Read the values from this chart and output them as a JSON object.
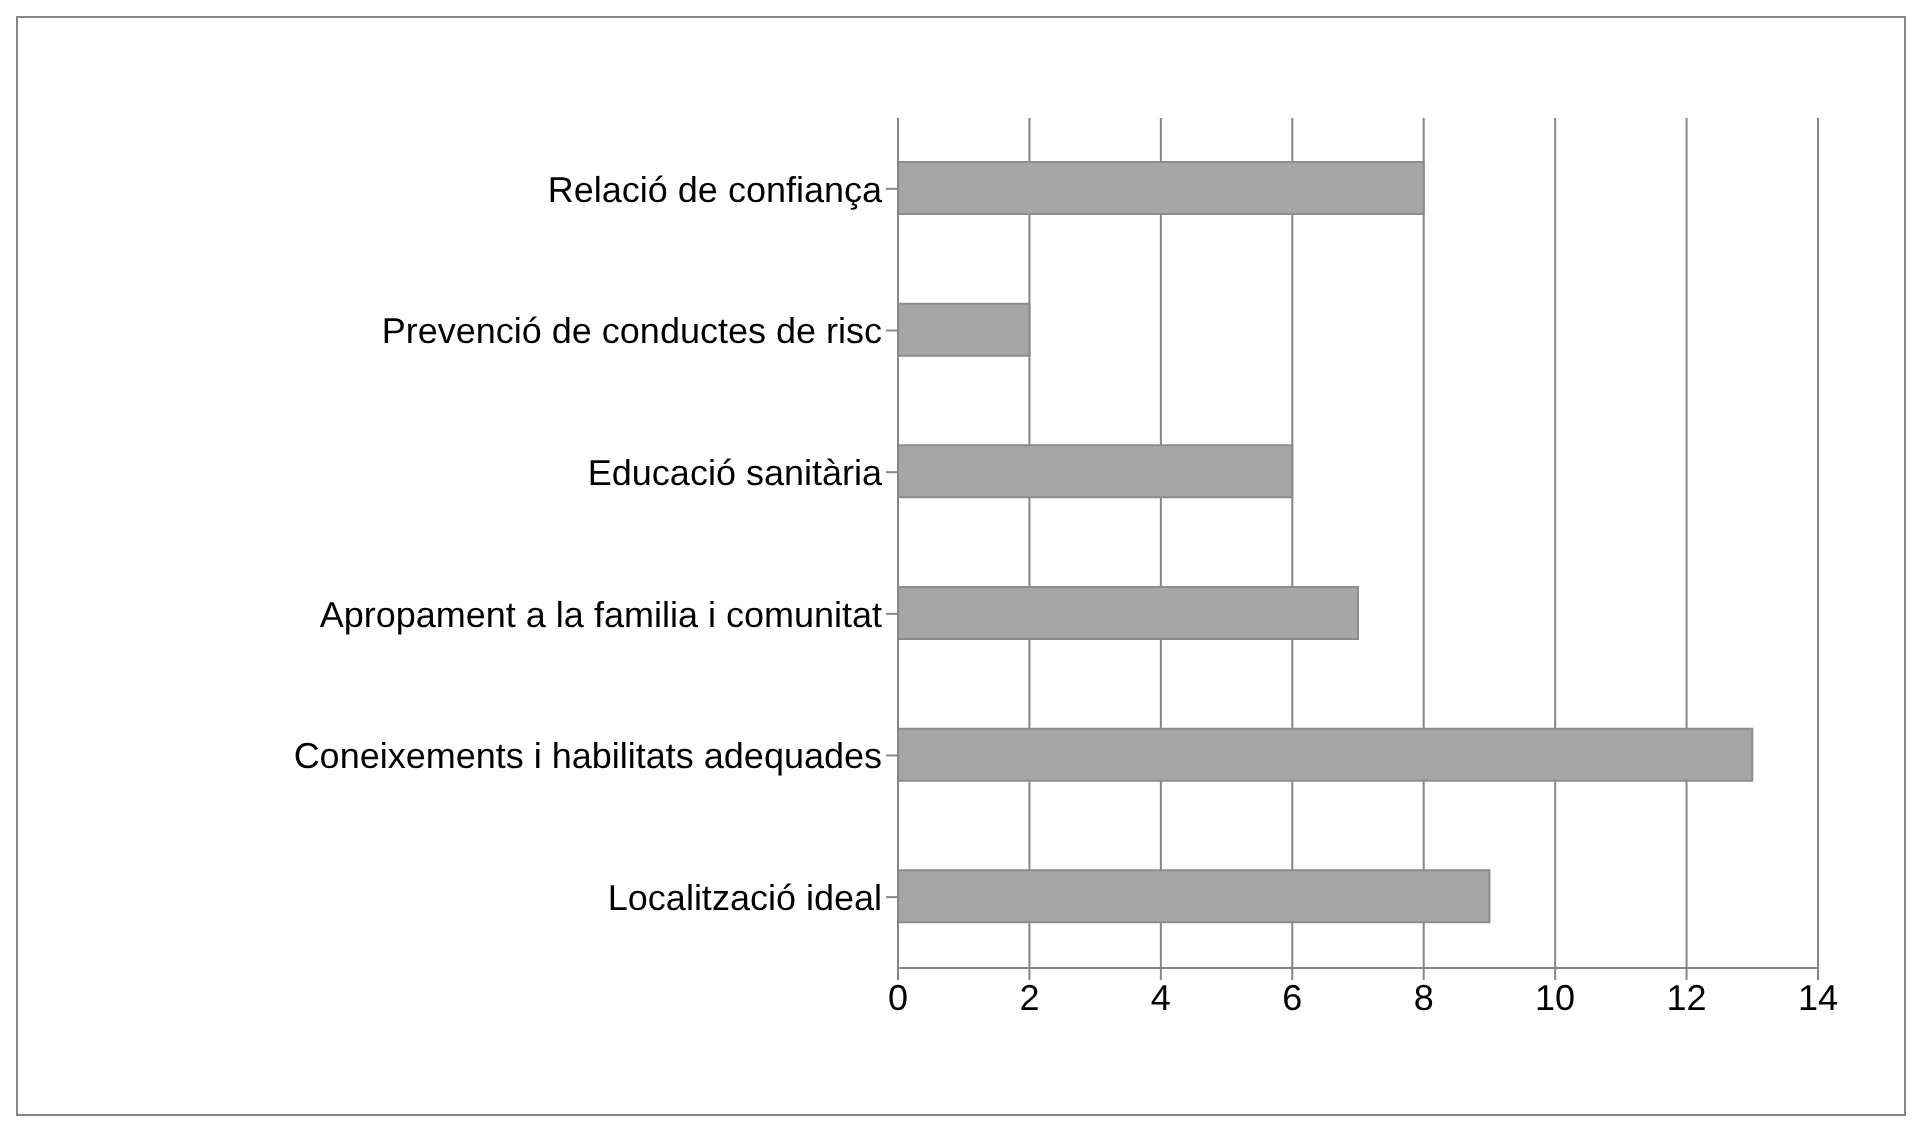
{
  "chart_data": {
    "type": "bar",
    "orientation": "horizontal",
    "categories": [
      "Relació de confiança",
      "Prevenció de conductes de risc",
      "Educació sanitària",
      "Apropament a la familia i comunitat",
      "Coneixements i habilitats adequades",
      "Localització ideal"
    ],
    "values": [
      8,
      2,
      6,
      7,
      13,
      9
    ],
    "color": "#a6a6a6",
    "xlim": [
      0,
      14
    ],
    "xticks": [
      0,
      2,
      4,
      6,
      8,
      10,
      12,
      14
    ],
    "grid": "x"
  }
}
